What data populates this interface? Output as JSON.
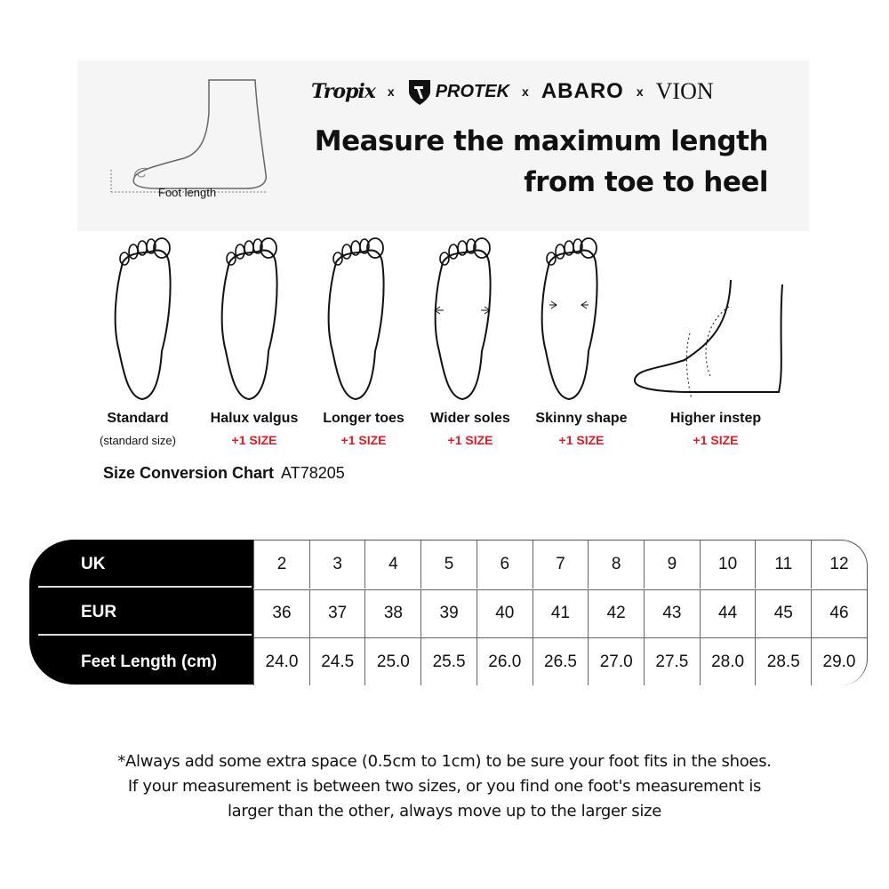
{
  "banner": {
    "brands": [
      "Tropix",
      "PROTEK",
      "ABARO",
      "VION"
    ],
    "separator": "x",
    "headline_line1": "Measure the maximum length",
    "headline_line2": "from toe to heel",
    "foot_length_label": "Foot length"
  },
  "foot_types": [
    {
      "name": "Standard",
      "note": "(standard size)"
    },
    {
      "name": "Halux valgus",
      "note": "+1 SIZE"
    },
    {
      "name": "Longer toes",
      "note": "+1 SIZE"
    },
    {
      "name": "Wider soles",
      "note": "+1 SIZE"
    },
    {
      "name": "Skinny shape",
      "note": "+1 SIZE"
    },
    {
      "name": "Higher instep",
      "note": "+1 SIZE"
    }
  ],
  "colors": {
    "accent_red": "#e01b24",
    "header_bg": "#000000",
    "banner_bg": "#f5f5f5"
  },
  "chart": {
    "title": "Size Conversion Chart",
    "code": "AT78205",
    "row_headers": [
      "UK",
      "EUR",
      "Feet Length (cm)"
    ],
    "rows": [
      [
        "2",
        "3",
        "4",
        "5",
        "6",
        "7",
        "8",
        "9",
        "10",
        "11",
        "12"
      ],
      [
        "36",
        "37",
        "38",
        "39",
        "40",
        "41",
        "42",
        "43",
        "44",
        "45",
        "46"
      ],
      [
        "24.0",
        "24.5",
        "25.0",
        "25.5",
        "26.0",
        "26.5",
        "27.0",
        "27.5",
        "28.0",
        "28.5",
        "29.0"
      ]
    ]
  },
  "footnote": {
    "line1": "*Always add some extra space (0.5cm to 1cm) to be sure your foot fits in the shoes.",
    "line2": "If your measurement is between two sizes, or you find one foot's measurement is",
    "line3": "larger than the other, always move up to the larger size"
  }
}
